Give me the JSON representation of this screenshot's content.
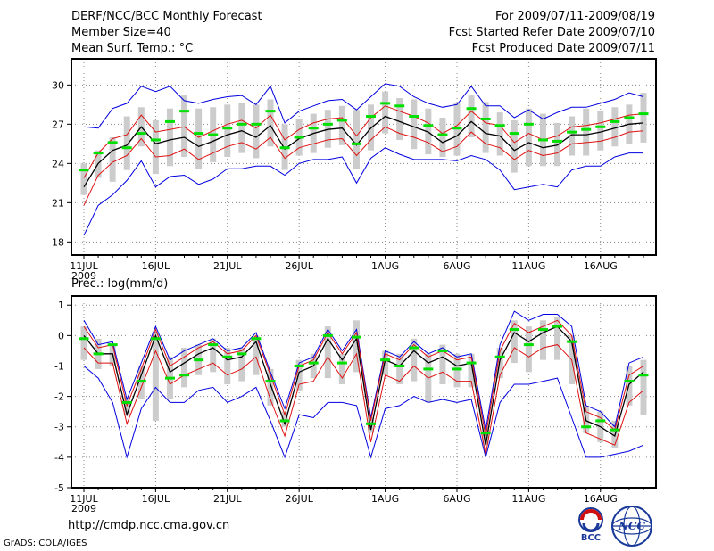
{
  "header": {
    "title": "DERF/NCC/BCC Monthly Forecast",
    "member_size": "Member Size=40",
    "variable": "Mean Surf. Temp.: °C",
    "forecast_period": "For 2009/07/11-2009/08/19",
    "start_refer": "Fcst Started Refer Date 2009/07/10",
    "produced": "Fcst Produced Date 2009/07/11"
  },
  "footer": {
    "url": "http://cmdp.ncc.cma.gov.cn",
    "credit": "GrADS: COLA/IGES",
    "logo_bcc": "BCC",
    "logo_ncc": "NCC"
  },
  "colors": {
    "mean": "#000000",
    "stddev": "#e01010",
    "extremes": "#0000e0",
    "box": "#cccccc",
    "median": "#00e000",
    "grid": "#888888"
  },
  "chart_data": [
    {
      "type": "box-ensemble",
      "title": "Mean Surf. Temp.: °C",
      "ylim": [
        17,
        32
      ],
      "yticks": [
        18,
        21,
        24,
        27,
        30
      ],
      "xtick_labels": [
        "11JUL",
        "16JUL",
        "21JUL",
        "26JUL",
        "1AUG",
        "6AUG",
        "11AUG",
        "16AUG"
      ],
      "xtick_days": [
        1,
        6,
        11,
        16,
        22,
        27,
        32,
        37
      ],
      "year_label": "2009",
      "days": 40,
      "mean": [
        22.2,
        24.0,
        25.0,
        25.4,
        26.8,
        25.5,
        25.8,
        26.0,
        25.3,
        25.7,
        26.2,
        26.5,
        26.0,
        26.9,
        25.1,
        25.9,
        26.3,
        26.6,
        26.7,
        25.4,
        26.7,
        27.6,
        27.2,
        26.8,
        26.4,
        25.6,
        26.1,
        27.2,
        26.3,
        26.1,
        25.0,
        25.6,
        25.2,
        25.4,
        26.2,
        26.2,
        26.4,
        26.7,
        27.0,
        27.1
      ],
      "upper": [
        22.9,
        24.8,
        25.9,
        26.2,
        27.7,
        26.4,
        26.6,
        26.8,
        26.0,
        26.5,
        27.0,
        27.3,
        26.7,
        27.7,
        25.8,
        26.6,
        27.1,
        27.4,
        27.5,
        26.1,
        27.5,
        28.4,
        28.0,
        27.6,
        27.1,
        26.3,
        26.9,
        28.0,
        27.1,
        26.9,
        25.6,
        26.3,
        25.8,
        26.1,
        26.8,
        26.9,
        27.1,
        27.4,
        27.7,
        27.8
      ],
      "lower": [
        20.8,
        23.1,
        24.1,
        24.6,
        25.9,
        24.5,
        24.6,
        25.1,
        24.3,
        24.8,
        25.3,
        25.6,
        25.1,
        26.0,
        24.4,
        25.2,
        25.5,
        25.8,
        25.9,
        24.6,
        25.8,
        26.8,
        26.3,
        26.0,
        25.6,
        24.9,
        25.3,
        26.4,
        25.5,
        25.2,
        24.3,
        25.0,
        24.6,
        24.8,
        25.5,
        25.6,
        25.7,
        26.0,
        26.4,
        26.5
      ],
      "max": [
        26.8,
        26.7,
        28.2,
        28.6,
        29.9,
        29.5,
        29.9,
        28.8,
        28.6,
        28.9,
        29.1,
        29.2,
        28.5,
        29.9,
        27.1,
        28.0,
        28.4,
        28.8,
        28.9,
        28.1,
        29.1,
        30.1,
        29.9,
        29.1,
        28.6,
        28.3,
        28.5,
        29.9,
        28.4,
        28.4,
        27.5,
        28.1,
        27.4,
        27.9,
        28.3,
        28.3,
        28.6,
        28.9,
        29.4,
        29.1
      ],
      "min": [
        18.5,
        20.8,
        21.6,
        22.7,
        24.2,
        22.2,
        23.0,
        23.1,
        22.4,
        22.8,
        23.6,
        23.6,
        23.8,
        23.8,
        23.1,
        24.0,
        24.3,
        24.3,
        24.5,
        22.5,
        24.4,
        25.2,
        24.7,
        24.3,
        24.3,
        24.3,
        24.2,
        24.6,
        24.3,
        23.5,
        22.0,
        22.2,
        22.4,
        22.2,
        23.5,
        23.8,
        23.8,
        24.5,
        24.8,
        24.8
      ],
      "box_high": [
        24.0,
        25.0,
        26.0,
        27.6,
        28.3,
        27.3,
        28.2,
        29.2,
        28.2,
        28.3,
        28.5,
        28.6,
        28.5,
        28.9,
        27.0,
        27.4,
        27.8,
        28.1,
        28.4,
        28.1,
        28.5,
        29.5,
        29.0,
        28.9,
        28.2,
        27.5,
        28.6,
        29.2,
        28.7,
        27.9,
        27.3,
        28.2,
        27.8,
        27.1,
        27.6,
        28.2,
        28.0,
        28.3,
        28.5,
        29.4
      ],
      "box_low": [
        21.6,
        22.9,
        22.6,
        23.5,
        25.3,
        23.2,
        23.8,
        24.5,
        23.6,
        24.1,
        24.5,
        24.8,
        24.4,
        25.3,
        23.5,
        24.6,
        24.8,
        25.2,
        25.4,
        23.6,
        25.0,
        26.3,
        25.8,
        25.1,
        24.7,
        24.5,
        24.6,
        26.0,
        24.8,
        24.6,
        23.3,
        23.8,
        23.8,
        23.8,
        24.6,
        24.6,
        25.0,
        25.3,
        25.5,
        25.6
      ],
      "median": [
        23.5,
        24.8,
        25.6,
        25.2,
        26.3,
        25.8,
        27.2,
        28.0,
        26.3,
        26.2,
        26.7,
        27.0,
        27.0,
        28.0,
        25.2,
        26.0,
        26.7,
        27.0,
        27.3,
        25.5,
        27.6,
        28.6,
        28.4,
        27.6,
        26.9,
        26.2,
        26.7,
        28.2,
        27.4,
        26.9,
        26.3,
        27.0,
        25.8,
        25.7,
        26.4,
        26.6,
        26.8,
        27.2,
        27.5,
        27.8
      ]
    },
    {
      "type": "box-ensemble",
      "title": "Prec.: log(mm/d)",
      "ylim": [
        -5,
        1.3
      ],
      "yticks": [
        1,
        0,
        -1,
        -2,
        -3,
        -4,
        -5
      ],
      "xtick_labels": [
        "11JUL",
        "16JUL",
        "21JUL",
        "26JUL",
        "1AUG",
        "6AUG",
        "11AUG",
        "16AUG"
      ],
      "xtick_days": [
        1,
        6,
        11,
        16,
        22,
        27,
        32,
        37
      ],
      "year_label": "2009",
      "days": 40,
      "mean": [
        0.0,
        -0.6,
        -0.6,
        -2.6,
        -1.3,
        0.0,
        -1.2,
        -0.9,
        -0.6,
        -0.4,
        -0.8,
        -0.7,
        -0.2,
        -1.6,
        -2.9,
        -1.2,
        -1.0,
        -0.1,
        -0.8,
        -0.1,
        -3.1,
        -0.8,
        -1.0,
        -0.5,
        -0.9,
        -0.7,
        -1.0,
        -0.9,
        -3.6,
        -0.8,
        0.1,
        -0.2,
        0.1,
        0.3,
        -0.2,
        -2.8,
        -3.0,
        -3.3,
        -1.6,
        -1.2
      ],
      "upper": [
        0.3,
        -0.4,
        -0.3,
        -2.3,
        -1.1,
        0.2,
        -1.0,
        -0.7,
        -0.4,
        -0.2,
        -0.6,
        -0.5,
        0.0,
        -1.3,
        -2.6,
        -1.0,
        -0.8,
        0.1,
        -0.6,
        0.1,
        -2.8,
        -0.6,
        -0.8,
        -0.3,
        -0.7,
        -0.5,
        -0.8,
        -0.7,
        -3.3,
        -0.5,
        0.4,
        0.1,
        0.3,
        0.5,
        0.0,
        -2.5,
        -2.7,
        -3.1,
        -1.3,
        -1.0
      ],
      "lower": [
        -0.4,
        -0.9,
        -0.9,
        -2.9,
        -1.7,
        -0.5,
        -1.6,
        -1.3,
        -1.1,
        -0.9,
        -1.3,
        -1.1,
        -0.7,
        -2.1,
        -3.3,
        -1.6,
        -1.5,
        -0.7,
        -1.4,
        -0.6,
        -3.5,
        -1.3,
        -1.5,
        -1.0,
        -1.4,
        -1.2,
        -1.5,
        -1.5,
        -3.9,
        -1.3,
        -0.4,
        -0.7,
        -0.4,
        -0.3,
        -0.8,
        -3.2,
        -3.4,
        -3.6,
        -2.2,
        -1.8
      ],
      "max": [
        0.5,
        -0.3,
        -0.2,
        -2.1,
        -0.9,
        0.3,
        -0.8,
        -0.5,
        -0.3,
        -0.1,
        -0.5,
        -0.4,
        0.1,
        -1.2,
        -2.4,
        -0.9,
        -0.7,
        0.2,
        -0.5,
        0.2,
        -2.7,
        -0.5,
        -0.7,
        -0.2,
        -0.6,
        -0.4,
        -0.7,
        -0.6,
        -3.1,
        -0.3,
        0.8,
        0.5,
        0.7,
        0.7,
        0.3,
        -2.3,
        -2.5,
        -3.0,
        -0.9,
        -0.7
      ],
      "min": [
        -1.0,
        -1.4,
        -2.2,
        -4.0,
        -2.4,
        -1.7,
        -2.2,
        -2.2,
        -1.8,
        -1.7,
        -2.2,
        -2.0,
        -1.7,
        -2.8,
        -4.0,
        -2.6,
        -2.7,
        -2.2,
        -2.2,
        -2.3,
        -4.0,
        -2.4,
        -2.3,
        -2.0,
        -2.2,
        -2.1,
        -2.2,
        -2.1,
        -4.0,
        -2.2,
        -1.6,
        -1.6,
        -1.5,
        -1.4,
        -2.7,
        -4.0,
        -4.0,
        -3.9,
        -3.8,
        -3.6
      ],
      "box_high": [
        0.3,
        -0.1,
        -0.3,
        -2.0,
        -1.0,
        0.1,
        -0.7,
        -0.4,
        -0.3,
        -0.1,
        -0.4,
        -0.4,
        0.0,
        -1.1,
        -2.5,
        -0.8,
        -0.6,
        0.3,
        -0.6,
        0.5,
        -2.7,
        -0.5,
        -0.6,
        -0.1,
        -0.6,
        -0.3,
        -0.6,
        -0.6,
        -3.0,
        -0.4,
        0.5,
        0.3,
        0.5,
        0.6,
        0.0,
        -2.3,
        -2.5,
        -2.8,
        -1.0,
        -0.8
      ],
      "box_low": [
        -0.8,
        -1.1,
        -1.0,
        -2.6,
        -2.1,
        -2.8,
        -2.1,
        -1.7,
        -1.3,
        -1.2,
        -1.6,
        -1.5,
        -1.3,
        -2.3,
        -3.0,
        -1.8,
        -1.4,
        -1.4,
        -1.6,
        -1.2,
        -3.2,
        -1.3,
        -1.6,
        -1.5,
        -2.2,
        -1.6,
        -1.7,
        -1.7,
        -3.6,
        -1.4,
        -0.9,
        -1.2,
        -0.8,
        -0.8,
        -1.6,
        -3.2,
        -3.5,
        -3.7,
        -2.3,
        -2.6
      ],
      "median": [
        -0.1,
        -0.6,
        -0.3,
        -2.2,
        -1.5,
        -0.1,
        -1.4,
        -1.3,
        -0.8,
        -0.3,
        -0.7,
        -0.6,
        -0.1,
        -1.5,
        -2.8,
        -1.0,
        -0.9,
        0.0,
        -0.9,
        -0.05,
        -2.9,
        -0.8,
        -1.0,
        -0.4,
        -1.1,
        -0.5,
        -1.1,
        -0.9,
        -3.2,
        -0.7,
        0.2,
        -0.3,
        0.2,
        0.3,
        -0.2,
        -3.0,
        -2.8,
        -3.1,
        -1.5,
        -1.3
      ]
    }
  ]
}
